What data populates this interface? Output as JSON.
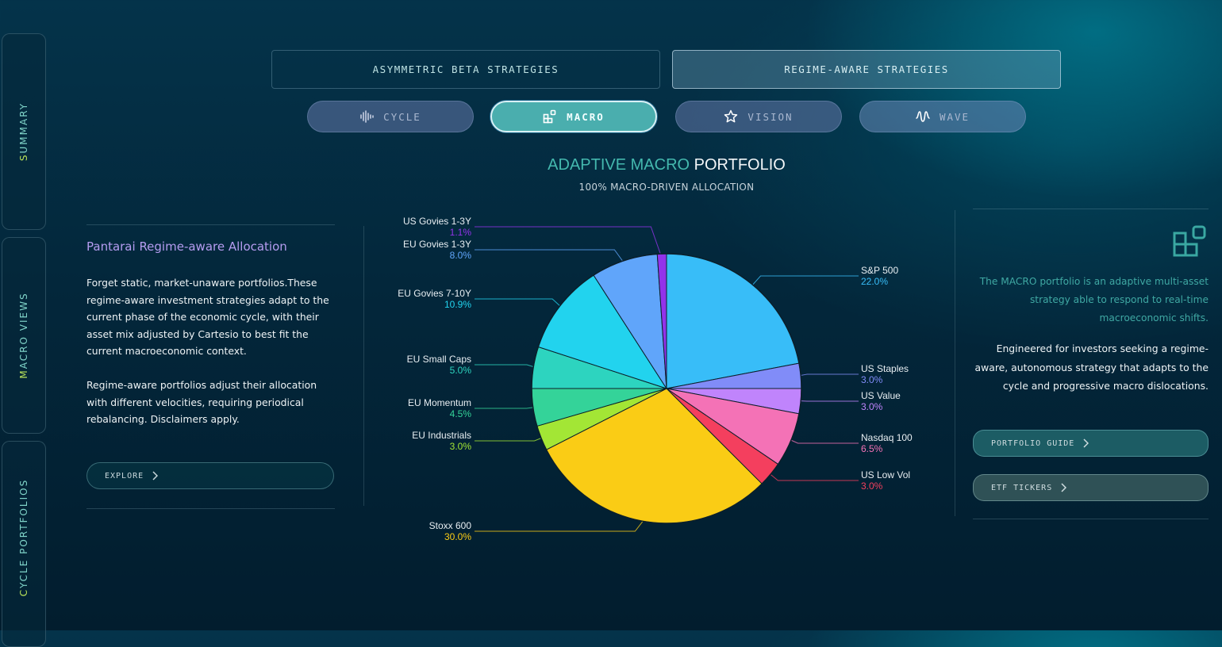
{
  "sidebar": {
    "tabs": [
      {
        "first": "S",
        "rest": "UMMARY"
      },
      {
        "first": "M",
        "rest": "ACRO VIEWS"
      },
      {
        "first": "C",
        "rest": "YCLE PORTFOLIOS"
      }
    ]
  },
  "strategy_tabs": [
    {
      "label": "ASYMMETRIC BETA STRATEGIES"
    },
    {
      "label": "REGIME-AWARE STRATEGIES"
    }
  ],
  "pills": [
    {
      "label": "CYCLE",
      "icon": "waveform-icon"
    },
    {
      "label": "MACRO",
      "icon": "grid-blocks-icon"
    },
    {
      "label": "VISION",
      "icon": "star-icon"
    },
    {
      "label": "WAVE",
      "icon": "wave-icon"
    }
  ],
  "header": {
    "title_part1": "ADAPTIVE MACRO",
    "title_part2": " PORTFOLIO",
    "subtitle": "100% MACRO-DRIVEN ALLOCATION"
  },
  "left_panel": {
    "title": "Pantarai Regime-aware Allocation",
    "para1": "Forget static, market-unaware portfolios.These regime-aware investment strategies adapt to the current phase of the economic cycle, with their asset mix adjusted by Cartesio to best fit the current macroeconomic context.",
    "para2": "Regime-aware portfolios adjust their allocation with different velocities, requiring periodical rebalancing. Disclaimers apply.",
    "explore_label": "EXPLORE"
  },
  "right_panel": {
    "teal_text": "The MACRO portfolio is an adaptive multi-asset strategy able to respond to real-time macroeconomic shifts.",
    "text": "Engineered for investors seeking a regime-aware, autonomous strategy that adapts to the cycle and progressive macro dislocations.",
    "guide_label": "PORTFOLIO GUIDE",
    "etf_label": "ETF TICKERS"
  },
  "chart_data": {
    "type": "pie",
    "title": "ADAPTIVE MACRO PORTFOLIO",
    "subtitle": "100% MACRO-DRIVEN ALLOCATION",
    "slices": [
      {
        "name": "S&P 500",
        "value": 22.0,
        "label": "22.0%",
        "color": "#38bdf8"
      },
      {
        "name": "US Staples",
        "value": 3.0,
        "label": "3.0%",
        "color": "#818cf8"
      },
      {
        "name": "US Value",
        "value": 3.0,
        "label": "3.0%",
        "color": "#c084fc"
      },
      {
        "name": "Nasdaq 100",
        "value": 6.5,
        "label": "6.5%",
        "color": "#f472b6"
      },
      {
        "name": "US Low Vol",
        "value": 3.0,
        "label": "3.0%",
        "color": "#f43f5e"
      },
      {
        "name": "Stoxx 600",
        "value": 30.0,
        "label": "30.0%",
        "color": "#facc15"
      },
      {
        "name": "EU Industrials",
        "value": 3.0,
        "label": "3.0%",
        "color": "#a3e635"
      },
      {
        "name": "EU Momentum",
        "value": 4.5,
        "label": "4.5%",
        "color": "#34d399"
      },
      {
        "name": "EU Small Caps",
        "value": 5.0,
        "label": "5.0%",
        "color": "#2dd4bf"
      },
      {
        "name": "EU Govies 7-10Y",
        "value": 10.9,
        "label": "10.9%",
        "color": "#22d3ee"
      },
      {
        "name": "EU Govies 1-3Y",
        "value": 8.0,
        "label": "8.0%",
        "color": "#60a5fa"
      },
      {
        "name": "US Govies 1-3Y",
        "value": 1.1,
        "label": "1.1%",
        "color": "#9333ea"
      }
    ]
  }
}
